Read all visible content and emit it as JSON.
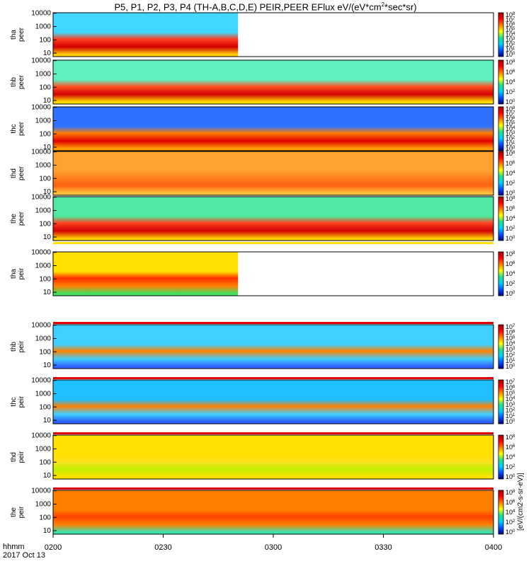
{
  "chart_data": {
    "type": "heatmap",
    "title": "P5, P1, P2, P3, P4 (TH-A,B,C,D,E) PEIR,PEER EFlux eV/(eV*cm²*sec*sr)",
    "title_parts": {
      "main": "P5, P1, P2, P3, P4 (TH-A,B,C,D,E) PEIR,PEER EFlux eV/(eV*cm",
      "sup": "2",
      "tail": "*sec*sr)"
    },
    "xlabel_line1": "hhmm",
    "xlabel_line2": "2017 Oct 13",
    "x_ticks": [
      "0200",
      "0230",
      "0300",
      "0330",
      "0400"
    ],
    "x_range": [
      "02:00",
      "04:00"
    ],
    "y_scale": "log",
    "y_ticks": [
      "10000",
      "1000",
      "100",
      "10"
    ],
    "colorbar_label": "[eV/(cm2-s-sr-eV)]",
    "colorbar_colors": [
      "#000080",
      "#0050ff",
      "#00d0ff",
      "#20e090",
      "#ffff00",
      "#ff8000",
      "#ff0000",
      "#a00000"
    ],
    "panels": [
      {
        "probe": "tha",
        "species": "peer",
        "cbar_exp": [
          "0",
          "1",
          "2",
          "3",
          "4",
          "5",
          "6",
          "7",
          "8"
        ],
        "data_end_frac": 0.42,
        "bg": [
          "#40d8ff",
          "#ff4020",
          "#d00000",
          "#ffd000"
        ]
      },
      {
        "probe": "thb",
        "species": "peer",
        "cbar_exp": [
          "0",
          "2",
          "4",
          "6",
          "8"
        ],
        "data_end_frac": 1.0,
        "bg": [
          "#60f0c0",
          "#ff5020",
          "#d00000",
          "#ffe000"
        ]
      },
      {
        "probe": "thc",
        "species": "peer",
        "cbar_exp": [
          "0",
          "1",
          "2",
          "3",
          "4",
          "5",
          "6",
          "7",
          "8"
        ],
        "data_end_frac": 1.0,
        "bg": [
          "#3070ff",
          "#ff8000",
          "#e00000",
          "#ffa000"
        ]
      },
      {
        "probe": "thd",
        "species": "peer",
        "cbar_exp": [
          "0",
          "2",
          "4",
          "6",
          "8"
        ],
        "data_end_frac": 1.0,
        "bg": [
          "#ffa030",
          "#ff8020",
          "#ff6010",
          "#ffc040"
        ]
      },
      {
        "probe": "the",
        "species": "peer",
        "cbar_exp": [
          "0",
          "2",
          "4",
          "6",
          "8"
        ],
        "data_end_frac": 1.0,
        "bg": [
          "#50e8a0",
          "#ff4020",
          "#d00000",
          "#ffd000"
        ]
      },
      {
        "probe": "tha",
        "species": "peir",
        "cbar_exp": [
          "0",
          "2",
          "4",
          "6",
          "8"
        ],
        "data_end_frac": 0.42,
        "bg": [
          "#ffe000",
          "#ff3000",
          "#ff8000",
          "#40e060"
        ]
      },
      {
        "probe": "thb",
        "species": "peir",
        "cbar_exp": [
          "0",
          "1",
          "2",
          "3",
          "4",
          "5",
          "6",
          "7"
        ],
        "data_end_frac": 1.0,
        "bg": [
          "#40d0ff",
          "#ff8000",
          "#40d0ff",
          "#3060ff"
        ]
      },
      {
        "probe": "thc",
        "species": "peir",
        "cbar_exp": [
          "0",
          "1",
          "2",
          "3",
          "4",
          "5",
          "6",
          "7"
        ],
        "data_end_frac": 1.0,
        "bg": [
          "#20c0ff",
          "#ff8000",
          "#40d0ff",
          "#3060ff"
        ]
      },
      {
        "probe": "thd",
        "species": "peir",
        "cbar_exp": [
          "0",
          "2",
          "4",
          "6",
          "8"
        ],
        "data_end_frac": 1.0,
        "bg": [
          "#ffe000",
          "#ffe020",
          "#c0f000",
          "#ffe000"
        ]
      },
      {
        "probe": "the",
        "species": "peir",
        "cbar_exp": [
          "0",
          "2",
          "4",
          "6",
          "8"
        ],
        "data_end_frac": 1.0,
        "bg": [
          "#ff8000",
          "#ff4000",
          "#ff8000",
          "#40e0b0"
        ]
      }
    ]
  }
}
